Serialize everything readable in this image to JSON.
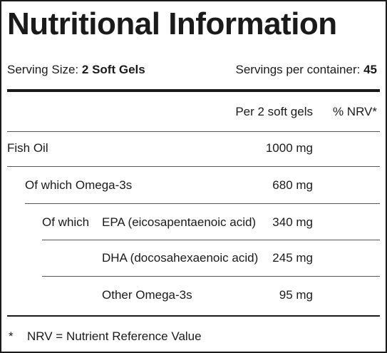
{
  "title": "Nutritional Information",
  "serving": {
    "size_label": "Serving Size:",
    "size_value": "2 Soft Gels",
    "per_container_label": "Servings per container:",
    "per_container_value": "45"
  },
  "columns": {
    "amount": "Per 2 soft gels",
    "nrv": "% NRV*"
  },
  "rows": [
    {
      "label": "Fish Oil",
      "amount": "1000 mg"
    },
    {
      "label": "Of which Omega-3s",
      "amount": "680 mg"
    },
    {
      "prefix": "Of which",
      "label": "EPA (eicosapentaenoic acid)",
      "amount": "340 mg"
    },
    {
      "label": "DHA (docosahexaenoic acid)",
      "amount": "245 mg"
    },
    {
      "label": "Other Omega-3s",
      "amount": "95 mg"
    }
  ],
  "footnote": {
    "marker": "*",
    "text": "NRV = Nutrient Reference Value"
  }
}
